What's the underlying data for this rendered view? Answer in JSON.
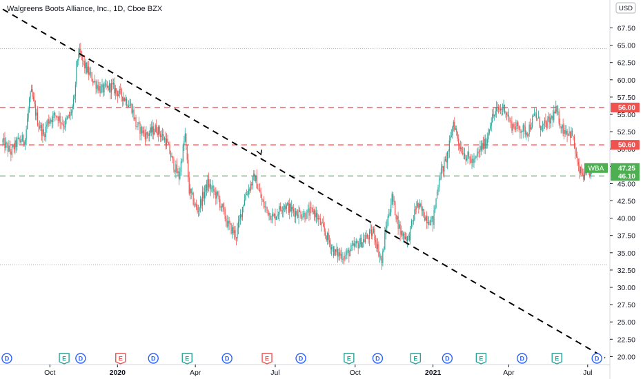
{
  "chart_data": {
    "type": "candlestick",
    "title": "Walgreens Boots Alliance, Inc., 1D, Cboe BZX",
    "currency": "USD",
    "ylim": [
      19.5,
      71.0
    ],
    "y_ticks": [
      "67.50",
      "65.00",
      "62.50",
      "60.00",
      "57.50",
      "55.00",
      "52.50",
      "50.00",
      "47.50",
      "45.00",
      "42.50",
      "40.00",
      "37.50",
      "35.00",
      "32.50",
      "30.00",
      "27.50",
      "25.00",
      "22.50",
      "20.00"
    ],
    "x_labels": [
      {
        "label": "Oct",
        "bar": 46
      },
      {
        "label": "2020",
        "bar": 112
      },
      {
        "label": "Apr",
        "bar": 188
      },
      {
        "label": "Jul",
        "bar": 266
      },
      {
        "label": "Oct",
        "bar": 344
      },
      {
        "label": "2021",
        "bar": 420
      },
      {
        "label": "Apr",
        "bar": 494
      },
      {
        "label": "Jul",
        "bar": 571
      }
    ],
    "total_bars": 590,
    "price_path": [
      [
        0,
        51
      ],
      [
        8,
        49.5
      ],
      [
        14,
        51
      ],
      [
        22,
        51.5
      ],
      [
        26,
        57
      ],
      [
        28,
        58
      ],
      [
        34,
        54
      ],
      [
        40,
        52
      ],
      [
        44,
        54
      ],
      [
        52,
        55
      ],
      [
        60,
        53.5
      ],
      [
        66,
        55
      ],
      [
        70,
        57
      ],
      [
        72,
        62
      ],
      [
        74,
        64
      ],
      [
        80,
        62
      ],
      [
        88,
        60
      ],
      [
        96,
        58.5
      ],
      [
        106,
        59
      ],
      [
        118,
        57.5
      ],
      [
        126,
        56
      ],
      [
        130,
        53.5
      ],
      [
        140,
        52
      ],
      [
        150,
        53
      ],
      [
        160,
        51
      ],
      [
        166,
        48
      ],
      [
        172,
        46
      ],
      [
        178,
        52
      ],
      [
        182,
        44
      ],
      [
        190,
        41
      ],
      [
        200,
        45
      ],
      [
        210,
        43
      ],
      [
        220,
        39
      ],
      [
        228,
        37.5
      ],
      [
        236,
        43
      ],
      [
        246,
        46
      ],
      [
        254,
        42
      ],
      [
        264,
        40
      ],
      [
        274,
        42
      ],
      [
        284,
        41
      ],
      [
        294,
        40.5
      ],
      [
        304,
        41
      ],
      [
        314,
        38
      ],
      [
        324,
        35
      ],
      [
        334,
        34.5
      ],
      [
        344,
        36
      ],
      [
        354,
        37
      ],
      [
        362,
        38
      ],
      [
        370,
        33.5
      ],
      [
        374,
        38.5
      ],
      [
        380,
        43
      ],
      [
        388,
        38
      ],
      [
        396,
        37
      ],
      [
        404,
        42
      ],
      [
        414,
        40
      ],
      [
        420,
        39.5
      ],
      [
        426,
        46
      ],
      [
        432,
        48
      ],
      [
        436,
        50.5
      ],
      [
        440,
        54
      ],
      [
        446,
        50.5
      ],
      [
        452,
        49
      ],
      [
        460,
        48
      ],
      [
        466,
        50
      ],
      [
        472,
        51
      ],
      [
        476,
        54
      ],
      [
        482,
        55.5
      ],
      [
        490,
        56
      ],
      [
        496,
        53.5
      ],
      [
        504,
        53
      ],
      [
        512,
        52.5
      ],
      [
        520,
        55
      ],
      [
        526,
        53
      ],
      [
        534,
        54
      ],
      [
        540,
        55.5
      ],
      [
        546,
        53
      ],
      [
        552,
        52.5
      ],
      [
        556,
        52
      ],
      [
        562,
        47
      ],
      [
        568,
        46
      ],
      [
        572,
        46.5
      ],
      [
        576,
        47.2
      ]
    ],
    "levels": [
      {
        "price": 56.0,
        "label": "56.00",
        "color": "#ef5350",
        "style": "dashed"
      },
      {
        "price": 50.6,
        "label": "50.60",
        "color": "#ef5350",
        "style": "dashed"
      },
      {
        "price": 46.1,
        "label": "46.10",
        "color": "#4caf50",
        "style": "dashed"
      },
      {
        "price": 64.5,
        "color": "#b2b5be",
        "style": "dotted"
      },
      {
        "price": 33.3,
        "color": "#b2b5be",
        "style": "dotted"
      }
    ],
    "last_price": {
      "symbol": "WBA",
      "value": "47.25",
      "color": "#4caf50"
    },
    "trendline": {
      "from": {
        "bar": 0,
        "price": 70.2
      },
      "to": {
        "bar": 588,
        "price": 19.8
      },
      "color": "#000000"
    },
    "arrow_marker": {
      "bar": 252,
      "price": 49.2
    },
    "events": [
      {
        "type": "D",
        "bar": 4
      },
      {
        "type": "E",
        "bar": 60
      },
      {
        "type": "D",
        "bar": 76
      },
      {
        "type": "E",
        "bar": 115
      },
      {
        "type": "D",
        "bar": 147
      },
      {
        "type": "E",
        "bar": 180
      },
      {
        "type": "D",
        "bar": 219
      },
      {
        "type": "E",
        "bar": 258
      },
      {
        "type": "D",
        "bar": 291
      },
      {
        "type": "E",
        "bar": 338
      },
      {
        "type": "D",
        "bar": 366
      },
      {
        "type": "E",
        "bar": 403
      },
      {
        "type": "D",
        "bar": 434
      },
      {
        "type": "E",
        "bar": 467
      },
      {
        "type": "D",
        "bar": 507
      },
      {
        "type": "E",
        "bar": 541
      },
      {
        "type": "D",
        "bar": 580
      }
    ],
    "colors": {
      "up": "#26a69a",
      "down": "#ef5350",
      "event_dividend": "#2962ff",
      "event_earnings_up": "#26a69a",
      "event_earnings_down": "#ef5350",
      "axis": "#131722",
      "grid": "#ffffff"
    }
  },
  "earnings_down_bars": [
    115,
    258
  ]
}
